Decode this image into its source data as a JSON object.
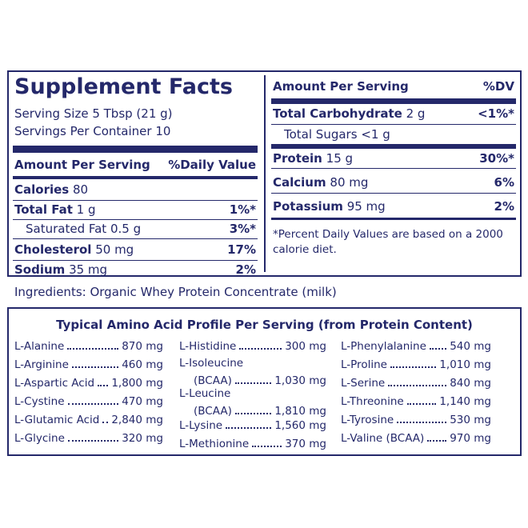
{
  "label": {
    "title": "Supplement Facts",
    "serving_size": "Serving Size 5 Tbsp (21 g)",
    "servings_per_container": "Servings Per Container 10",
    "left_header": {
      "amount": "Amount Per Serving",
      "dv": "%Daily Value"
    },
    "left_rows": [
      {
        "name": "Calories",
        "amount": "80"
      },
      {
        "name": "Total Fat",
        "amount": "1 g",
        "dv": "1%*"
      },
      {
        "name": "Saturated Fat",
        "amount": "0.5 g",
        "dv": "3%*"
      },
      {
        "name": "Cholesterol",
        "amount": "50 mg",
        "dv": "17%"
      },
      {
        "name": "Sodium",
        "amount": "35 mg",
        "dv": "2%"
      }
    ],
    "right_header": {
      "amount": "Amount Per Serving",
      "dv": "%DV"
    },
    "right_rows": [
      {
        "name": "Total Carbohydrate",
        "amount": "2 g",
        "dv": "<1%*"
      },
      {
        "name": "Total Sugars",
        "amount": "<1 g"
      },
      {
        "name": "Protein",
        "amount": "15 g",
        "dv": "30%*"
      },
      {
        "name": "Calcium",
        "amount": "80 mg",
        "dv": "6%"
      },
      {
        "name": "Potassium",
        "amount": "95 mg",
        "dv": "2%"
      }
    ],
    "footnote": "*Percent Daily Values are based on a 2000 calorie diet."
  },
  "ingredients": "Ingredients: Organic Whey Protein Concentrate (milk)",
  "amino": {
    "title": "Typical Amino Acid Profile Per Serving (from Protein Content)",
    "columns": [
      [
        {
          "name": "L-Alanine",
          "amount": "870 mg"
        },
        {
          "name": "L-Arginine",
          "amount": "460 mg"
        },
        {
          "name": "L-Aspartic Acid",
          "amount": "1,800 mg"
        },
        {
          "name": "L-Cystine",
          "amount": "470 mg"
        },
        {
          "name": "L-Glutamic Acid",
          "amount": "2,840 mg"
        },
        {
          "name": "L-Glycine",
          "amount": "320 mg"
        }
      ],
      [
        {
          "name": "L-Histidine",
          "amount": "300 mg"
        },
        {
          "name": "L-Isoleucine",
          "qualifier": "(BCAA)",
          "amount": "1,030 mg"
        },
        {
          "name": "L-Leucine",
          "qualifier": "(BCAA)",
          "amount": "1,810 mg"
        },
        {
          "name": "L-Lysine",
          "amount": "1,560 mg"
        },
        {
          "name": "L-Methionine",
          "amount": "370 mg"
        }
      ],
      [
        {
          "name": "L-Phenylalanine",
          "amount": "540 mg"
        },
        {
          "name": "L-Proline",
          "amount": "1,010 mg"
        },
        {
          "name": "L-Serine",
          "amount": "840 mg"
        },
        {
          "name": "L-Threonine",
          "amount": "1,140 mg"
        },
        {
          "name": "L-Tyrosine",
          "amount": "530 mg"
        },
        {
          "name": "L-Valine (BCAA)",
          "amount": "970 mg"
        }
      ]
    ]
  }
}
